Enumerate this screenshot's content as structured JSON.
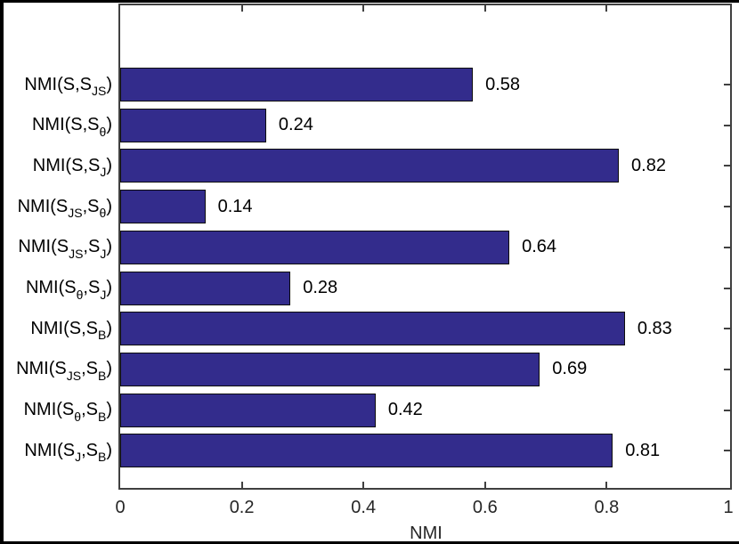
{
  "chart_data": {
    "type": "bar",
    "orientation": "horizontal",
    "title": "",
    "xlabel": "NMI",
    "xlim": [
      0,
      1
    ],
    "grid": false,
    "legend": null,
    "x_ticks": [
      {
        "label": "0",
        "value": 0
      },
      {
        "label": "0.2",
        "value": 0.2
      },
      {
        "label": "0.4",
        "value": 0.4
      },
      {
        "label": "0.6",
        "value": 0.6
      },
      {
        "label": "0.8",
        "value": 0.8
      },
      {
        "label": "1",
        "value": 1
      }
    ],
    "categories": [
      [
        {
          "t": "NMI(S,S"
        },
        {
          "t": "JS",
          "sub": true
        },
        {
          "t": ")"
        }
      ],
      [
        {
          "t": "NMI(S,S"
        },
        {
          "t": "θ",
          "sub": true
        },
        {
          "t": ")"
        }
      ],
      [
        {
          "t": "NMI(S,S"
        },
        {
          "t": "J",
          "sub": true
        },
        {
          "t": ")"
        }
      ],
      [
        {
          "t": "NMI(S"
        },
        {
          "t": "JS",
          "sub": true
        },
        {
          "t": ",S"
        },
        {
          "t": "θ",
          "sub": true
        },
        {
          "t": ")"
        }
      ],
      [
        {
          "t": "NMI(S"
        },
        {
          "t": "JS",
          "sub": true
        },
        {
          "t": ",S"
        },
        {
          "t": "J",
          "sub": true
        },
        {
          "t": ")"
        }
      ],
      [
        {
          "t": "NMI(S"
        },
        {
          "t": "θ",
          "sub": true
        },
        {
          "t": ",S"
        },
        {
          "t": "J",
          "sub": true
        },
        {
          "t": ")"
        }
      ],
      [
        {
          "t": "NMI(S,S"
        },
        {
          "t": "B",
          "sub": true
        },
        {
          "t": ")"
        }
      ],
      [
        {
          "t": "NMI(S"
        },
        {
          "t": "JS",
          "sub": true
        },
        {
          "t": ",S"
        },
        {
          "t": "B",
          "sub": true
        },
        {
          "t": ")"
        }
      ],
      [
        {
          "t": "NMI(S"
        },
        {
          "t": "θ",
          "sub": true
        },
        {
          "t": ",S"
        },
        {
          "t": "B",
          "sub": true
        },
        {
          "t": ")"
        }
      ],
      [
        {
          "t": "NMI(S"
        },
        {
          "t": "J",
          "sub": true
        },
        {
          "t": ",S"
        },
        {
          "t": "B",
          "sub": true
        },
        {
          "t": ")"
        }
      ]
    ],
    "values": [
      0.58,
      0.24,
      0.82,
      0.14,
      0.64,
      0.28,
      0.83,
      0.69,
      0.42,
      0.81
    ],
    "value_labels": [
      "0.58",
      "0.24",
      "0.82",
      "0.14",
      "0.64",
      "0.28",
      "0.83",
      "0.69",
      "0.42",
      "0.81"
    ],
    "bar_color": "#332c8c",
    "bar_edge_color": "#0d0d0d",
    "axis_color": "#404040",
    "tick_label_color": "#262626",
    "text_color": "#000000"
  }
}
